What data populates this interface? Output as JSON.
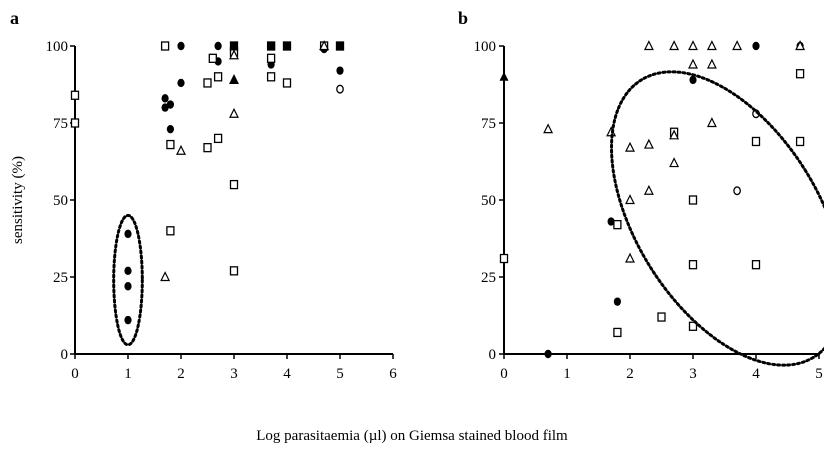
{
  "xlabel": "Log parasitaemia (µl) on Giemsa stained blood film",
  "chart_data": [
    {
      "panel": "a",
      "type": "scatter",
      "title": "",
      "xlabel": "",
      "ylabel": "sensitivity (%)",
      "xlim": [
        0,
        6
      ],
      "ylim": [
        0,
        100
      ],
      "xticks": [
        "0",
        "1",
        "2",
        "3",
        "4",
        "5",
        "6"
      ],
      "yticks": [
        "0",
        "25",
        "50",
        "75",
        "100"
      ],
      "grid": false,
      "legend": "none",
      "annotations": [
        {
          "shape": "dotted-ellipse",
          "cx": 1.0,
          "cy": 24,
          "rx": 0.27,
          "ry": 21
        }
      ],
      "series": [
        {
          "marker": "filled-circle",
          "points": [
            [
              1.0,
              39
            ],
            [
              1.0,
              27
            ],
            [
              1.0,
              22
            ],
            [
              1.0,
              11
            ],
            [
              1.7,
              83
            ],
            [
              1.7,
              80
            ],
            [
              1.8,
              81
            ],
            [
              1.8,
              73
            ],
            [
              2.0,
              100
            ],
            [
              2.0,
              88
            ],
            [
              2.7,
              100
            ],
            [
              2.7,
              95
            ],
            [
              3.7,
              94
            ],
            [
              4.7,
              99
            ],
            [
              5.0,
              100
            ],
            [
              5.0,
              92
            ]
          ]
        },
        {
          "marker": "open-circle",
          "points": [
            [
              5.0,
              86
            ]
          ]
        },
        {
          "marker": "open-square",
          "points": [
            [
              0.0,
              84
            ],
            [
              0.0,
              75
            ],
            [
              1.7,
              100
            ],
            [
              1.8,
              68
            ],
            [
              1.8,
              40
            ],
            [
              2.5,
              88
            ],
            [
              2.5,
              67
            ],
            [
              2.6,
              96
            ],
            [
              2.7,
              90
            ],
            [
              2.7,
              70
            ],
            [
              3.0,
              100
            ],
            [
              3.0,
              98
            ],
            [
              3.0,
              55
            ],
            [
              3.0,
              27
            ],
            [
              3.7,
              100
            ],
            [
              3.7,
              96
            ],
            [
              3.7,
              90
            ],
            [
              4.0,
              100
            ],
            [
              4.0,
              88
            ],
            [
              4.7,
              100
            ],
            [
              5.0,
              100
            ]
          ]
        },
        {
          "marker": "open-triangle",
          "points": [
            [
              1.7,
              25
            ],
            [
              2.0,
              66
            ],
            [
              3.0,
              89
            ],
            [
              3.0,
              78
            ],
            [
              3.0,
              97
            ],
            [
              4.7,
              100
            ]
          ]
        },
        {
          "marker": "filled-square",
          "points": [
            [
              3.0,
              100
            ],
            [
              3.7,
              100
            ],
            [
              4.0,
              100
            ],
            [
              5.0,
              100
            ]
          ]
        },
        {
          "marker": "filled-triangle",
          "points": [
            [
              3.0,
              89
            ]
          ]
        }
      ]
    },
    {
      "panel": "b",
      "type": "scatter",
      "title": "",
      "xlabel": "",
      "ylabel": "",
      "xlim": [
        0,
        5
      ],
      "ylim": [
        0,
        100
      ],
      "xticks": [
        "0",
        "1",
        "2",
        "3",
        "4",
        "5"
      ],
      "yticks": [
        "0",
        "25",
        "50",
        "75",
        "100"
      ],
      "grid": false,
      "legend": "none",
      "annotations": [
        {
          "shape": "dotted-ellipse",
          "cx": 3.55,
          "cy": 44,
          "rx": 1.45,
          "ry": 53
        }
      ],
      "series": [
        {
          "marker": "filled-circle",
          "points": [
            [
              0.7,
              0
            ],
            [
              1.7,
              43
            ],
            [
              1.8,
              17
            ],
            [
              3.0,
              89
            ],
            [
              4.0,
              100
            ],
            [
              4.7,
              100
            ]
          ]
        },
        {
          "marker": "open-circle",
          "points": [
            [
              3.7,
              53
            ],
            [
              4.0,
              78
            ]
          ]
        },
        {
          "marker": "open-square",
          "points": [
            [
              0.0,
              31
            ],
            [
              1.8,
              42
            ],
            [
              1.8,
              7
            ],
            [
              2.5,
              12
            ],
            [
              2.7,
              72
            ],
            [
              3.0,
              50
            ],
            [
              3.0,
              29
            ],
            [
              3.0,
              9
            ],
            [
              4.0,
              69
            ],
            [
              4.0,
              29
            ],
            [
              4.7,
              91
            ],
            [
              4.7,
              69
            ]
          ]
        },
        {
          "marker": "open-triangle",
          "points": [
            [
              0.7,
              73
            ],
            [
              1.7,
              72
            ],
            [
              2.0,
              67
            ],
            [
              2.0,
              50
            ],
            [
              2.0,
              31
            ],
            [
              2.3,
              53
            ],
            [
              2.3,
              68
            ],
            [
              2.3,
              100
            ],
            [
              2.7,
              100
            ],
            [
              2.7,
              71
            ],
            [
              2.7,
              62
            ],
            [
              3.0,
              100
            ],
            [
              3.0,
              94
            ],
            [
              3.3,
              100
            ],
            [
              3.3,
              94
            ],
            [
              3.3,
              75
            ],
            [
              3.7,
              100
            ],
            [
              4.7,
              100
            ]
          ]
        },
        {
          "marker": "filled-triangle",
          "points": [
            [
              0.0,
              90
            ]
          ]
        }
      ]
    }
  ]
}
